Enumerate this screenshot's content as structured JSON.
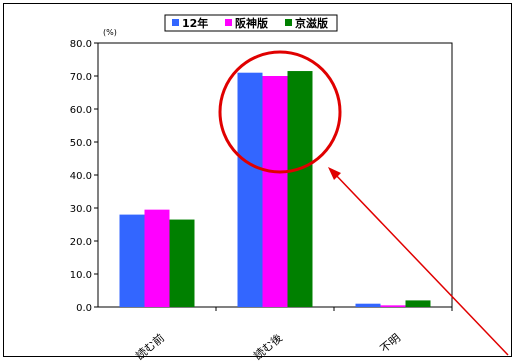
{
  "chart_data": {
    "type": "bar",
    "y_unit": "(%)",
    "categories": [
      "読む前",
      "読む後",
      "不明"
    ],
    "series": [
      {
        "name": "12年",
        "color": "#3366ff",
        "values": [
          28.0,
          71.0,
          1.0
        ]
      },
      {
        "name": "阪神版",
        "color": "#ff00ff",
        "values": [
          29.5,
          70.0,
          0.5
        ]
      },
      {
        "name": "京滋版",
        "color": "#008000",
        "values": [
          26.5,
          71.5,
          2.0
        ]
      }
    ],
    "ylim": [
      0,
      80
    ],
    "yticks": [
      "0.0",
      "10.0",
      "20.0",
      "30.0",
      "40.0",
      "50.0",
      "60.0",
      "70.0",
      "80.0"
    ],
    "legend_position": "top",
    "annotation": {
      "type": "circle-and-arrow",
      "color": "#e00000",
      "target_category": "読む後"
    }
  }
}
